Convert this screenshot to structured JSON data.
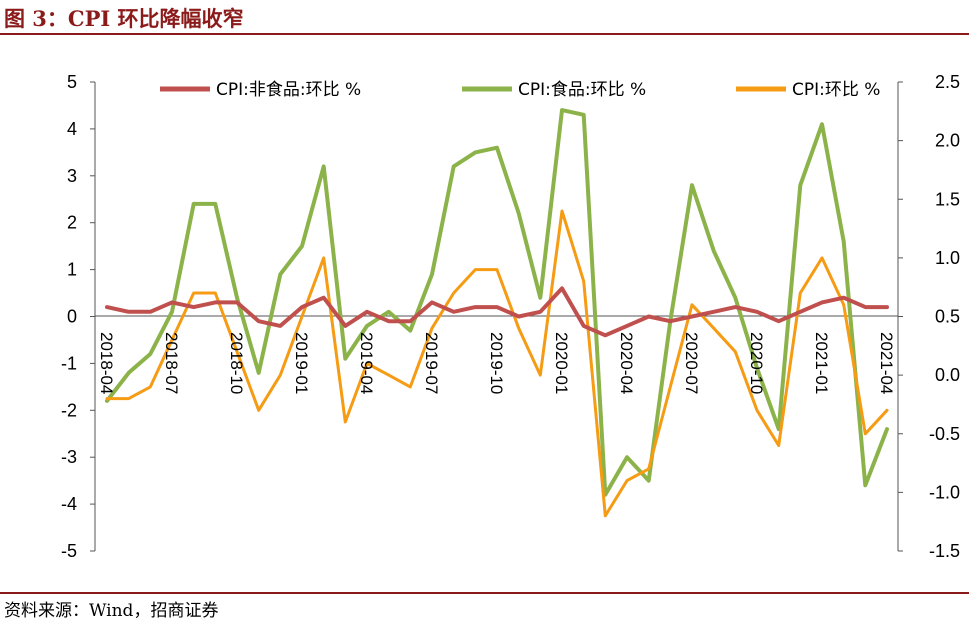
{
  "header": {
    "title": "图 3：CPI 环比降幅收窄"
  },
  "footer": {
    "source": "资料来源：Wind，招商证券"
  },
  "chart_data": {
    "type": "line",
    "title": "",
    "xlabel": "",
    "ylabel": "",
    "ylim_left": [
      -5,
      5
    ],
    "yticks_left": [
      "5",
      "4",
      "3",
      "2",
      "1",
      "0",
      "-1",
      "-2",
      "-3",
      "-4",
      "-5"
    ],
    "ylim_right": [
      -1.5,
      2.5
    ],
    "yticks_right": [
      "2.5",
      "2.0",
      "1.5",
      "1.0",
      "0.5",
      "0.0",
      "-0.5",
      "-1.0",
      "-1.5"
    ],
    "x": [
      "2018-04",
      "2018-05",
      "2018-06",
      "2018-07",
      "2018-08",
      "2018-09",
      "2018-10",
      "2018-11",
      "2018-12",
      "2019-01",
      "2019-02",
      "2019-03",
      "2019-04",
      "2019-05",
      "2019-06",
      "2019-07",
      "2019-08",
      "2019-09",
      "2019-10",
      "2019-11",
      "2019-12",
      "2020-01",
      "2020-02",
      "2020-03",
      "2020-04",
      "2020-05",
      "2020-06",
      "2020-07",
      "2020-08",
      "2020-09",
      "2020-10",
      "2020-11",
      "2020-12",
      "2021-01",
      "2021-02",
      "2021-03",
      "2021-04"
    ],
    "x_tick_labels": [
      "2018-04",
      "2018-07",
      "2018-10",
      "2019-01",
      "2019-04",
      "2019-07",
      "2019-10",
      "2020-01",
      "2020-04",
      "2020-07",
      "2020-10",
      "2021-01",
      "2021-04"
    ],
    "legend_position": "top",
    "series": [
      {
        "name": "CPI:非食品:环比 %",
        "axis": "left",
        "color": "#c0504d",
        "values": [
          0.2,
          0.1,
          0.1,
          0.3,
          0.2,
          0.3,
          0.3,
          -0.1,
          -0.2,
          0.2,
          0.4,
          -0.2,
          0.1,
          -0.1,
          -0.1,
          0.3,
          0.1,
          0.2,
          0.2,
          0.0,
          0.1,
          0.6,
          -0.2,
          -0.4,
          -0.2,
          0.0,
          -0.1,
          0.0,
          0.1,
          0.2,
          0.1,
          -0.1,
          0.1,
          0.3,
          0.4,
          0.2,
          0.2
        ]
      },
      {
        "name": "CPI:食品:环比 %",
        "axis": "left",
        "color": "#8cb34a",
        "values": [
          -1.8,
          -1.2,
          -0.8,
          0.1,
          2.4,
          2.4,
          0.4,
          -1.2,
          0.9,
          1.5,
          3.2,
          -0.9,
          -0.2,
          0.1,
          -0.3,
          0.9,
          3.2,
          3.5,
          3.6,
          2.2,
          0.4,
          4.4,
          4.3,
          -3.8,
          -3.0,
          -3.5,
          -0.1,
          2.8,
          1.4,
          0.4,
          -1.1,
          -2.4,
          2.8,
          4.1,
          1.6,
          -3.6,
          -2.4
        ]
      },
      {
        "name": "CPI:环比 %",
        "axis": "right",
        "color": "#f59b14",
        "values": [
          -0.2,
          -0.2,
          -0.1,
          0.3,
          0.7,
          0.7,
          0.2,
          -0.3,
          0.0,
          0.5,
          1.0,
          -0.4,
          0.1,
          0.0,
          -0.1,
          0.4,
          0.7,
          0.9,
          0.9,
          0.4,
          0.0,
          1.4,
          0.8,
          -1.2,
          -0.9,
          -0.8,
          -0.1,
          0.6,
          0.4,
          0.2,
          -0.3,
          -0.6,
          0.7,
          1.0,
          0.6,
          -0.5,
          -0.3
        ]
      }
    ]
  }
}
